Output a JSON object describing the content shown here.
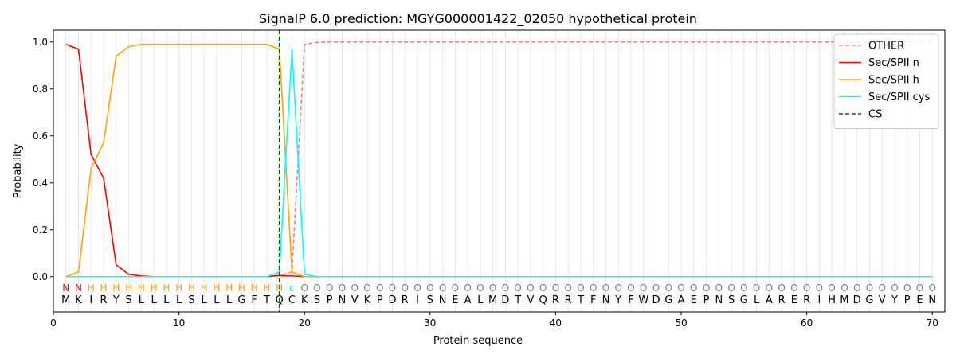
{
  "chart_data": {
    "type": "line",
    "title": "SignalP 6.0 prediction: MGYG000001422_02050 hypothetical protein",
    "xlabel": "Protein sequence",
    "ylabel": "Probability",
    "xlim": [
      0,
      71
    ],
    "ylim": [
      -0.15,
      1.05
    ],
    "xticks": [
      0,
      10,
      20,
      30,
      40,
      50,
      60,
      70
    ],
    "yticks": [
      0.0,
      0.2,
      0.4,
      0.6,
      0.8,
      1.0
    ],
    "xtick_labels": [
      "0",
      "10",
      "20",
      "30",
      "40",
      "50",
      "60",
      "70"
    ],
    "ytick_labels": [
      "0.0",
      "0.2",
      "0.4",
      "0.6",
      "0.8",
      "1.0"
    ],
    "sequence": [
      "M",
      "K",
      "I",
      "R",
      "Y",
      "S",
      "L",
      "L",
      "L",
      "L",
      "S",
      "L",
      "L",
      "L",
      "G",
      "F",
      "T",
      "Q",
      "C",
      "K",
      "S",
      "P",
      "N",
      "V",
      "K",
      "P",
      "D",
      "R",
      "I",
      "S",
      "N",
      "E",
      "A",
      "L",
      "M",
      "D",
      "T",
      "V",
      "Q",
      "R",
      "R",
      "T",
      "F",
      "N",
      "Y",
      "F",
      "W",
      "D",
      "G",
      "A",
      "E",
      "P",
      "N",
      "S",
      "G",
      "L",
      "A",
      "R",
      "E",
      "R",
      "I",
      "H",
      "M",
      "D",
      "G",
      "V",
      "Y",
      "P",
      "E",
      "N"
    ],
    "labels": [
      "N",
      "N",
      "H",
      "H",
      "H",
      "H",
      "H",
      "H",
      "H",
      "H",
      "H",
      "H",
      "H",
      "H",
      "H",
      "H",
      "H",
      "H",
      "c",
      "O",
      "O",
      "O",
      "O",
      "O",
      "O",
      "O",
      "O",
      "O",
      "O",
      "O",
      "O",
      "O",
      "O",
      "O",
      "O",
      "O",
      "O",
      "O",
      "O",
      "O",
      "O",
      "O",
      "O",
      "O",
      "O",
      "O",
      "O",
      "O",
      "O",
      "O",
      "O",
      "O",
      "O",
      "O",
      "O",
      "O",
      "O",
      "O",
      "O",
      "O",
      "O",
      "O",
      "O",
      "O",
      "O",
      "O",
      "O",
      "O",
      "O",
      "O"
    ],
    "label_colors": {
      "N": "#ff0000",
      "H": "#ffa500",
      "c": "#00ffff",
      "O": "#808080"
    },
    "cs_position": 18,
    "legend_position": "top-right",
    "grid": "vertical lines at each residue",
    "series": [
      {
        "name": "OTHER",
        "color": "#f08080",
        "style": "dashed",
        "x_range": [
          1,
          70
        ],
        "sparse": [
          [
            1,
            0.0
          ],
          [
            17,
            0.0
          ],
          [
            18,
            0.005
          ],
          [
            19,
            0.02
          ],
          [
            20,
            0.99
          ],
          [
            21,
            0.998
          ],
          [
            22,
            1.0
          ],
          [
            70,
            1.0
          ]
        ]
      },
      {
        "name": "Sec/SPII n",
        "color": "#ff0000",
        "style": "solid",
        "sparse": [
          [
            1,
            0.99
          ],
          [
            2,
            0.97
          ],
          [
            3,
            0.52
          ],
          [
            4,
            0.42
          ],
          [
            5,
            0.05
          ],
          [
            6,
            0.01
          ],
          [
            7,
            0.003
          ],
          [
            8,
            0.0
          ],
          [
            17,
            0.0
          ],
          [
            18,
            0.005
          ],
          [
            19,
            0.003
          ],
          [
            20,
            0.0
          ],
          [
            70,
            0.0
          ]
        ]
      },
      {
        "name": "Sec/SPII h",
        "color": "#ffa500",
        "style": "solid",
        "sparse": [
          [
            1,
            0.0
          ],
          [
            2,
            0.02
          ],
          [
            3,
            0.46
          ],
          [
            4,
            0.57
          ],
          [
            5,
            0.94
          ],
          [
            6,
            0.98
          ],
          [
            7,
            0.99
          ],
          [
            17,
            0.99
          ],
          [
            18,
            0.97
          ],
          [
            19,
            0.02
          ],
          [
            20,
            0.0
          ],
          [
            70,
            0.0
          ]
        ]
      },
      {
        "name": "Sec/SPII cys",
        "color": "#00ffff",
        "style": "solid",
        "sparse": [
          [
            1,
            0.0
          ],
          [
            17,
            0.0
          ],
          [
            18,
            0.02
          ],
          [
            19,
            0.97
          ],
          [
            20,
            0.01
          ],
          [
            21,
            0.0
          ],
          [
            70,
            0.0
          ]
        ]
      },
      {
        "name": "CS",
        "color": "#006400",
        "style": "dashed",
        "vertical_at": 18
      }
    ]
  }
}
